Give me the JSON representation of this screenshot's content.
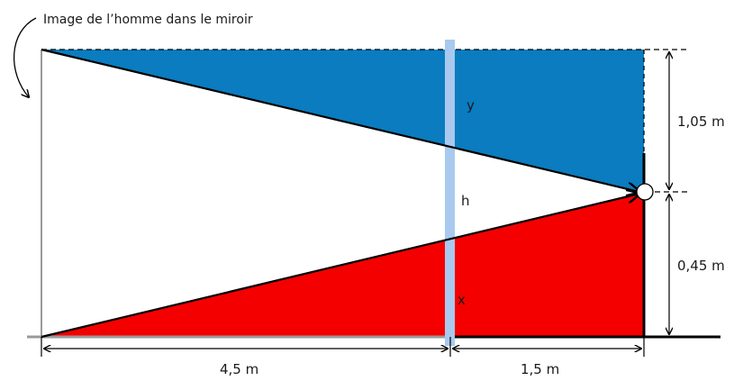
{
  "caption": "Image de l’homme dans le miroir",
  "labels": {
    "y": "y",
    "h": "h",
    "x": "x",
    "dist_image_mirror": "4,5 m",
    "dist_mirror_man": "1,5 m",
    "height_above_eye": "1,05 m",
    "eye_height": "0,45 m"
  },
  "colors": {
    "top_region": "#0a7cbf",
    "bottom_region": "#f40000",
    "mirror": "#a9c9ee",
    "lines": "#000000",
    "image_line": "#9a9a9a"
  }
}
